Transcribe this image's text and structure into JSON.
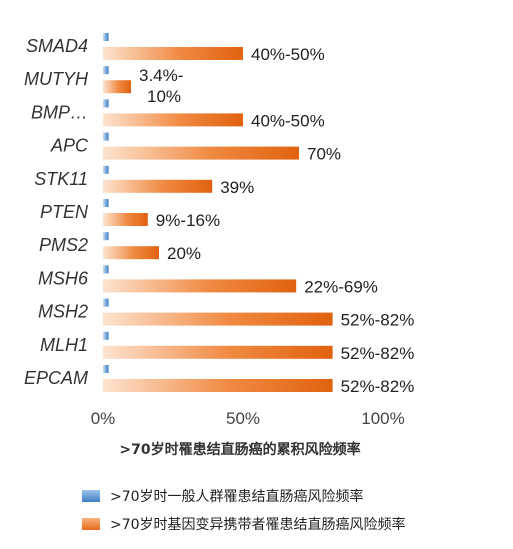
{
  "chart_data": {
    "type": "bar",
    "orientation": "horizontal",
    "categories": [
      "SMAD4",
      "MUTYH",
      "BMP…",
      "APC",
      "STK11",
      "PTEN",
      "PMS2",
      "MSH6",
      "MSH2",
      "MLH1",
      "EPCAM"
    ],
    "series": [
      {
        "name": ">70岁时一般人群罹患结直肠癌风险频率",
        "color": "#4a89cb",
        "values": [
          2,
          2,
          2,
          2,
          2,
          2,
          2,
          2,
          2,
          2,
          2
        ]
      },
      {
        "name": ">70岁时基因变异携带者罹患结直肠癌风险频率",
        "color": "#ed7d31",
        "values": [
          50,
          10,
          50,
          70,
          39,
          16,
          20,
          69,
          82,
          82,
          82
        ],
        "labels": [
          "40%-50%",
          "3.4%-\n10%",
          "40%-50%",
          "70%",
          "39%",
          "9%-16%",
          "20%",
          "22%-69%",
          "52%-82%",
          "52%-82%",
          "52%-82%"
        ]
      }
    ],
    "xlabel": ">70岁时罹患结直肠癌的累积风险频率",
    "xlim": [
      0,
      100
    ],
    "xticks": [
      "0%",
      "50%",
      "100%"
    ],
    "legend_position": "bottom"
  }
}
